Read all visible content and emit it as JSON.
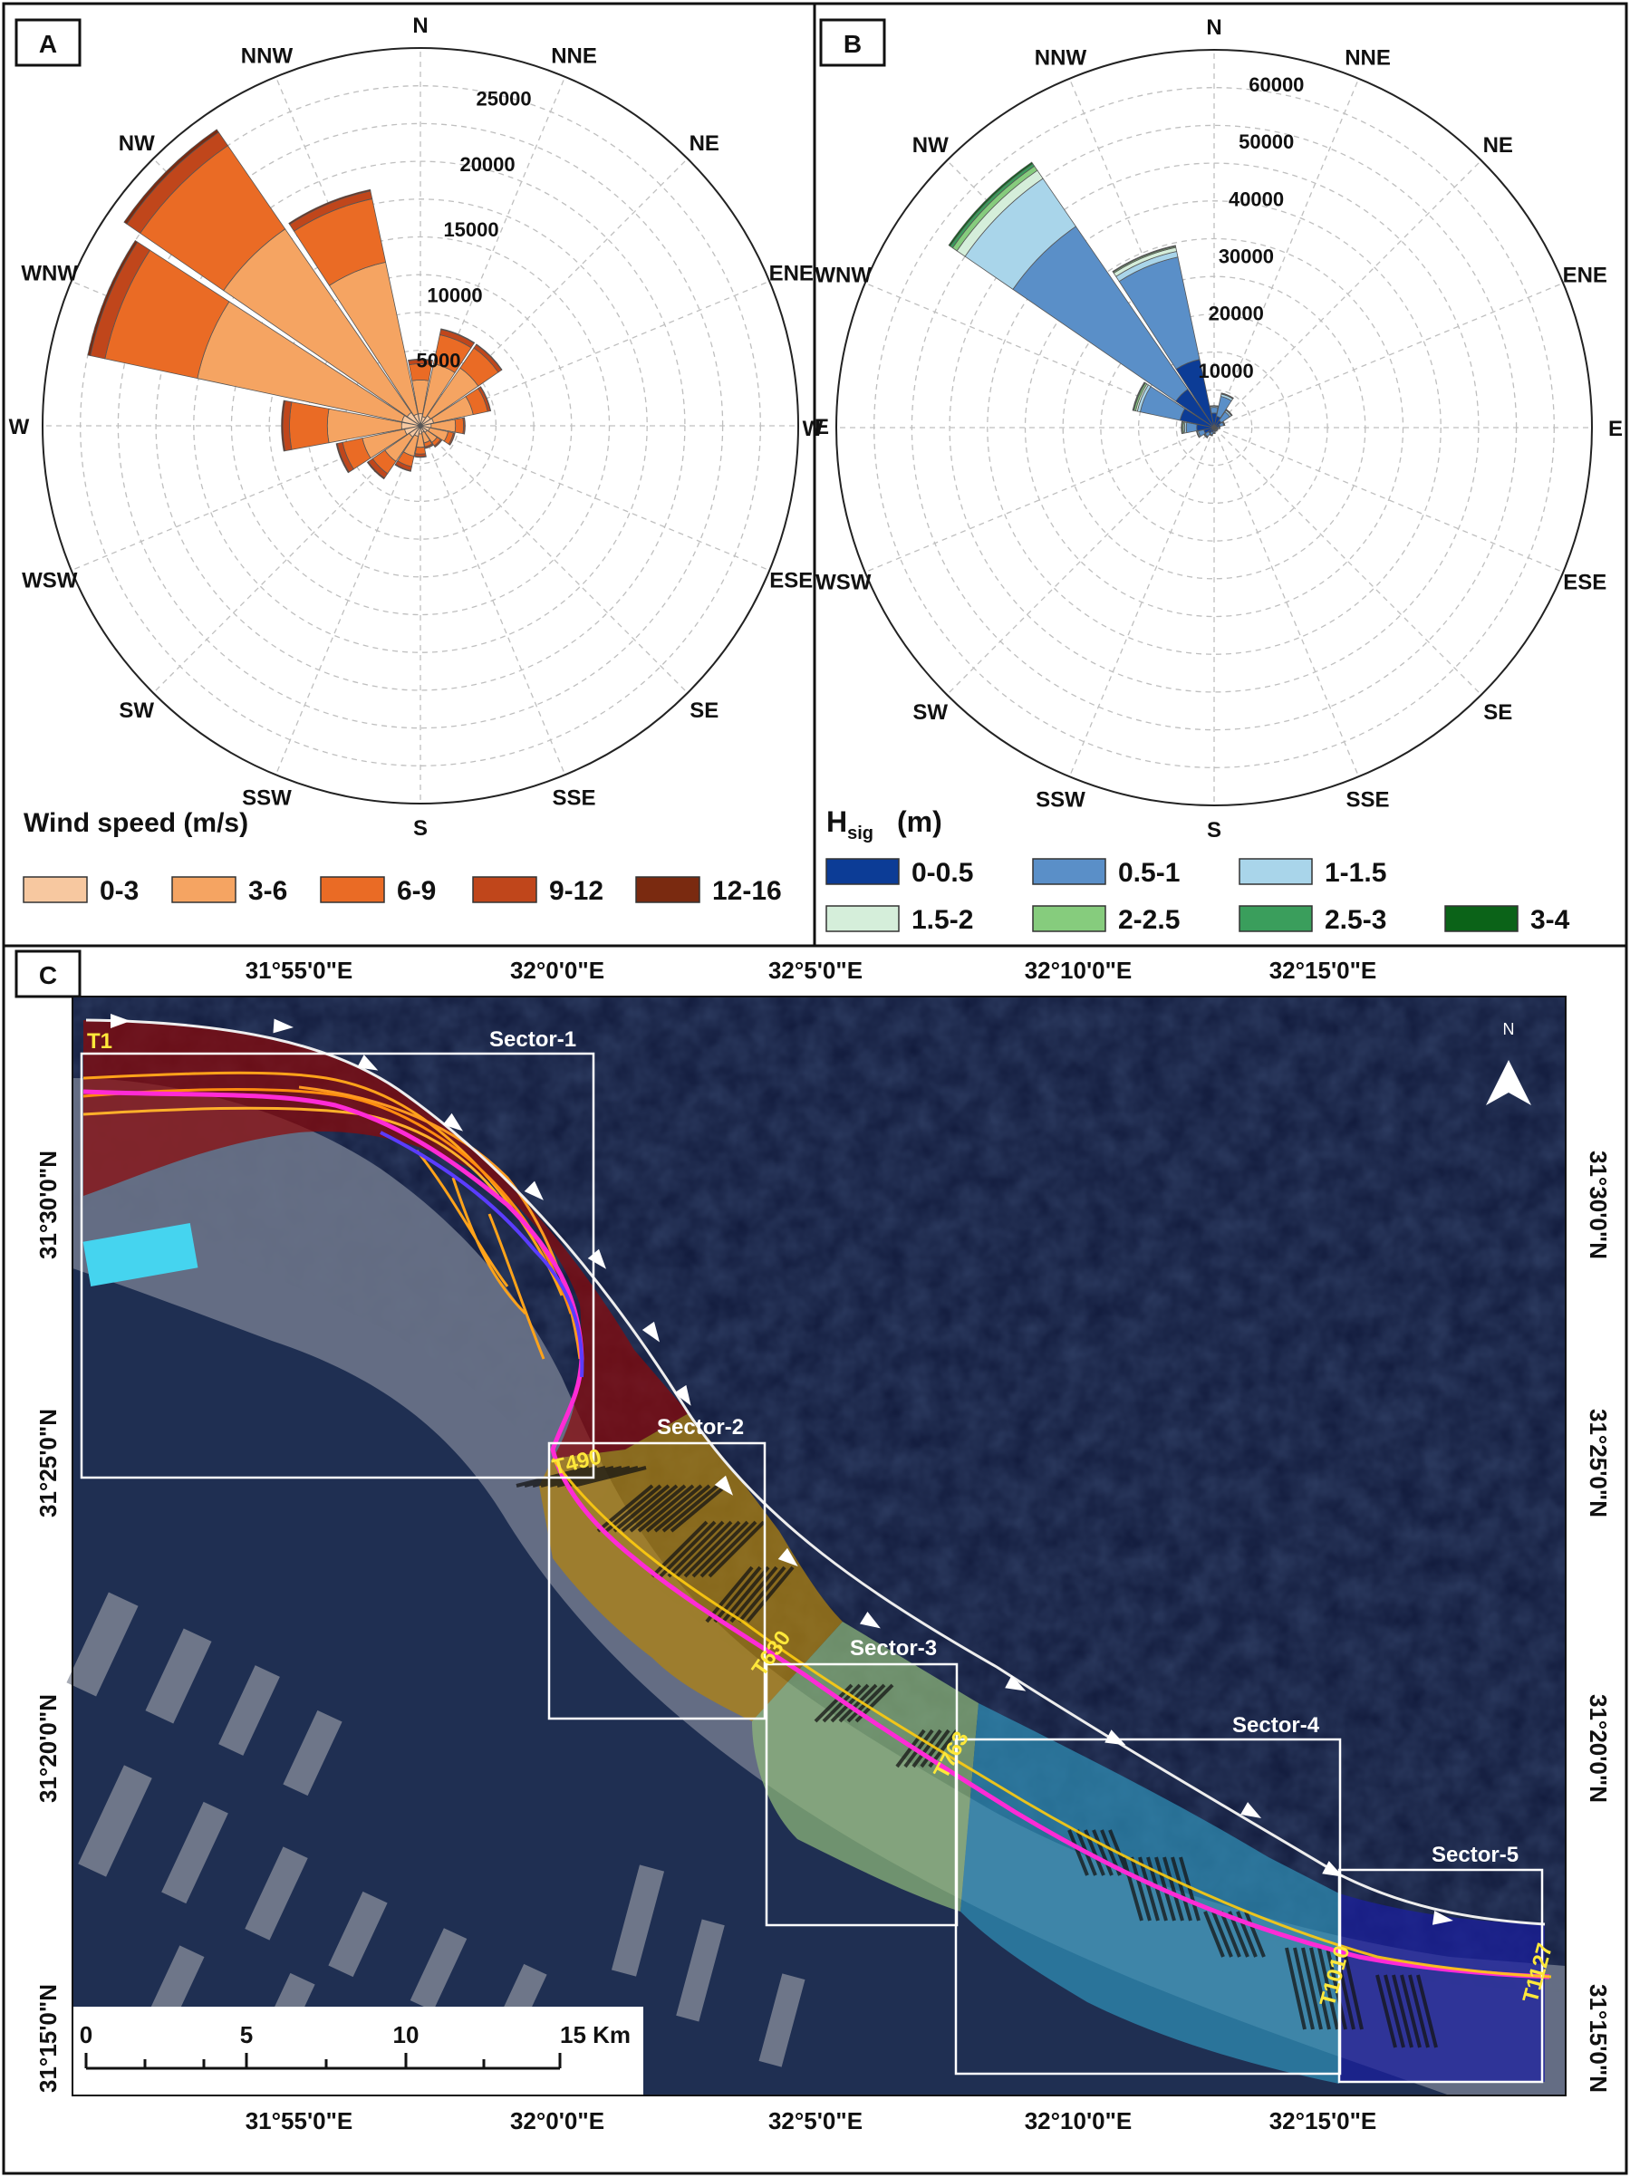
{
  "panels": {
    "a": {
      "letter": "A",
      "legend_title": "Wind speed (m/s)",
      "directions": [
        "N",
        "NNE",
        "NE",
        "ENE",
        "E",
        "ESE",
        "SE",
        "SSE",
        "S",
        "SSW",
        "SW",
        "WSW",
        "W",
        "WNW",
        "NW",
        "NNW"
      ],
      "radial_ticks": [
        "5000",
        "10000",
        "15000",
        "20000",
        "25000"
      ],
      "bins": [
        {
          "label": "0-3",
          "color": "#F7C8A0"
        },
        {
          "label": "3-6",
          "color": "#F5A462"
        },
        {
          "label": "6-9",
          "color": "#EA6B25"
        },
        {
          "label": "9-12",
          "color": "#C0461B"
        },
        {
          "label": "12-16",
          "color": "#7A2A10"
        }
      ]
    },
    "b": {
      "letter": "B",
      "legend_title_main": "H",
      "legend_title_sub": "sig",
      "legend_title_unit": "(m)",
      "directions": [
        "N",
        "NNE",
        "NE",
        "ENE",
        "E",
        "ESE",
        "SE",
        "SSE",
        "S",
        "SSW",
        "SW",
        "WSW",
        "W",
        "WNW",
        "NW",
        "NNW"
      ],
      "radial_ticks": [
        "10000",
        "20000",
        "30000",
        "40000",
        "50000",
        "60000"
      ],
      "bins": [
        {
          "label": "0-0.5",
          "color": "#0C3C96"
        },
        {
          "label": "0.5-1",
          "color": "#5A8FC8"
        },
        {
          "label": "1-1.5",
          "color": "#A9D5EA"
        },
        {
          "label": "1.5-2",
          "color": "#D5EEDA"
        },
        {
          "label": "2-2.5",
          "color": "#86CC7D"
        },
        {
          "label": "2.5-3",
          "color": "#3A9E5C"
        },
        {
          "label": "3-4",
          "color": "#0B6318"
        }
      ]
    },
    "c": {
      "letter": "C",
      "lon_labels": [
        "31°55'0\"E",
        "32°0'0\"E",
        "32°5'0\"E",
        "32°10'0\"E",
        "32°15'0\"E"
      ],
      "lat_labels": [
        "31°30'0\"N",
        "31°25'0\"N",
        "31°20'0\"N",
        "31°15'0\"N"
      ],
      "sectors": [
        {
          "label": "Sector-1",
          "color": "#8B0A0A"
        },
        {
          "label": "Sector-2",
          "color": "#B3830C"
        },
        {
          "label": "Sector-3",
          "color": "#8FB87A"
        },
        {
          "label": "Sector-4",
          "color": "#2F8FB5"
        },
        {
          "label": "Sector-5",
          "color": "#1A1FA0"
        }
      ],
      "transects": [
        "T1",
        "T490",
        "T630",
        "T763",
        "T1010",
        "T1127"
      ],
      "north": "N",
      "scale_ticks": [
        "0",
        "5",
        "10",
        "15 Km"
      ]
    }
  },
  "chart_data": [
    {
      "type": "wind-rose",
      "title": "",
      "legend": "Wind speed (m/s)",
      "directions": [
        "N",
        "NNE",
        "NE",
        "ENE",
        "E",
        "ESE",
        "SE",
        "SSE",
        "S",
        "SSW",
        "SW",
        "WSW",
        "W",
        "WNW",
        "NW",
        "NNW"
      ],
      "radial_max": 28000,
      "radial_ticks": [
        5000,
        10000,
        15000,
        20000,
        25000
      ],
      "series": [
        {
          "name": "0-3",
          "values": [
            900,
            700,
            900,
            1000,
            800,
            700,
            600,
            500,
            600,
            800,
            1000,
            1200,
            1400,
            1400,
            1200,
            900
          ]
        },
        {
          "name": "3-6",
          "values": [
            2500,
            4000,
            4300,
            3000,
            1800,
            1400,
            900,
            800,
            1000,
            1500,
            2200,
            3200,
            5500,
            15500,
            16500,
            11500
          ]
        },
        {
          "name": "6-9",
          "values": [
            1200,
            2200,
            1800,
            1100,
            600,
            400,
            300,
            300,
            500,
            800,
            1100,
            1500,
            2800,
            7000,
            7500,
            4800
          ]
        },
        {
          "name": "9-12",
          "values": [
            300,
            400,
            300,
            200,
            100,
            100,
            100,
            100,
            200,
            300,
            400,
            400,
            500,
            1100,
            1200,
            600
          ]
        },
        {
          "name": "12-16",
          "values": [
            50,
            50,
            40,
            30,
            20,
            20,
            20,
            20,
            40,
            60,
            80,
            80,
            100,
            200,
            250,
            100
          ]
        }
      ]
    },
    {
      "type": "wave-rose",
      "title": "",
      "legend": "Hsig (m)",
      "directions": [
        "N",
        "NNE",
        "NE",
        "ENE",
        "E",
        "ESE",
        "SE",
        "SSE",
        "S",
        "SSW",
        "SW",
        "WSW",
        "W",
        "WNW",
        "NW",
        "NNW"
      ],
      "radial_max": 65000,
      "radial_ticks": [
        10000,
        20000,
        30000,
        40000,
        50000,
        60000
      ],
      "series": [
        {
          "name": "0-0.5",
          "values": [
            2500,
            2000,
            1500,
            1000,
            600,
            400,
            400,
            400,
            600,
            800,
            1200,
            1800,
            3000,
            6000,
            8000,
            12000
          ]
        },
        {
          "name": "0.5-1",
          "values": [
            1000,
            3500,
            1800,
            700,
            300,
            200,
            200,
            200,
            300,
            500,
            700,
            1000,
            1800,
            7000,
            34000,
            18000
          ]
        },
        {
          "name": "1-1.5",
          "values": [
            200,
            400,
            300,
            100,
            50,
            50,
            50,
            50,
            60,
            100,
            150,
            200,
            300,
            500,
            10000,
            1000
          ]
        },
        {
          "name": "1.5-2",
          "values": [
            50,
            100,
            100,
            50,
            20,
            20,
            20,
            20,
            20,
            30,
            50,
            60,
            200,
            300,
            1700,
            700
          ]
        },
        {
          "name": "2-2.5",
          "values": [
            20,
            50,
            50,
            20,
            10,
            10,
            10,
            10,
            10,
            10,
            20,
            20,
            200,
            300,
            900,
            200
          ]
        },
        {
          "name": "2.5-3",
          "values": [
            10,
            20,
            20,
            10,
            5,
            5,
            5,
            5,
            5,
            5,
            10,
            10,
            100,
            150,
            500,
            100
          ]
        },
        {
          "name": "3-4",
          "values": [
            5,
            10,
            10,
            5,
            2,
            2,
            2,
            2,
            2,
            2,
            5,
            5,
            50,
            80,
            300,
            50
          ]
        }
      ]
    }
  ]
}
